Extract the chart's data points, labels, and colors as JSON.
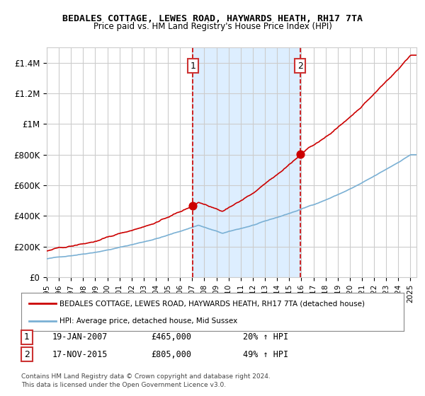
{
  "title": "BEDALES COTTAGE, LEWES ROAD, HAYWARDS HEATH, RH17 7TA",
  "subtitle": "Price paid vs. HM Land Registry's House Price Index (HPI)",
  "legend_line1": "BEDALES COTTAGE, LEWES ROAD, HAYWARDS HEATH, RH17 7TA (detached house)",
  "legend_line2": "HPI: Average price, detached house, Mid Sussex",
  "sale1_date": "19-JAN-2007",
  "sale1_price": "£465,000",
  "sale1_hpi": "20% ↑ HPI",
  "sale2_date": "17-NOV-2015",
  "sale2_price": "£805,000",
  "sale2_hpi": "49% ↑ HPI",
  "footnote1": "Contains HM Land Registry data © Crown copyright and database right 2024.",
  "footnote2": "This data is licensed under the Open Government Licence v3.0.",
  "ylim_max": 1500000,
  "sale1_year": 2007.05,
  "sale2_year": 2015.9,
  "sale1_value": 465000,
  "sale2_value": 805000,
  "red_color": "#cc0000",
  "blue_color": "#7ab0d4",
  "shade_color": "#ddeeff",
  "dashed_color": "#cc0000",
  "grid_color": "#cccccc",
  "bg_color": "#ffffff",
  "label_box_color": "#cc3333"
}
